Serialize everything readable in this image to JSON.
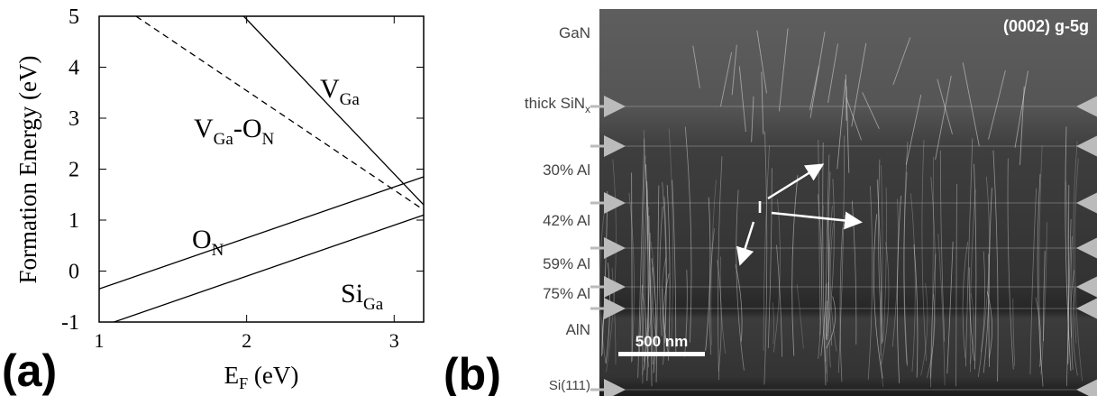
{
  "chart_data": {
    "type": "line",
    "x_label": {
      "main": "E",
      "sub": "F",
      "rest": " (eV)"
    },
    "y_label": "Formation Energy (eV)",
    "xlim": [
      1,
      3.2
    ],
    "ylim": [
      -1,
      5
    ],
    "xticks": [
      1,
      2,
      3
    ],
    "yticks": [
      -1,
      0,
      1,
      2,
      3,
      4,
      5
    ],
    "series": [
      {
        "color": "#000000",
        "dash": false,
        "x": [
          1.98,
          3.2
        ],
        "values": [
          5,
          1.3
        ]
      },
      {
        "color": "#000000",
        "dash": true,
        "x": [
          1.25,
          3.2
        ],
        "values": [
          5,
          1.2
        ]
      },
      {
        "color": "#000000",
        "dash": false,
        "x": [
          1,
          3.2
        ],
        "values": [
          -0.35,
          1.85
        ]
      },
      {
        "color": "#000000",
        "dash": false,
        "x": [
          1.1,
          3.2
        ],
        "values": [
          -1,
          1.1
        ]
      }
    ],
    "annotations": [
      [
        {
          "text": "V",
          "sub": "Ga"
        }
      ],
      [
        {
          "text": "V",
          "sub": "Ga"
        },
        {
          "text": "-O",
          "sub": "N"
        }
      ],
      [
        {
          "text": "O",
          "sub": "N"
        }
      ],
      [
        {
          "text": "Si",
          "sub": "Ga"
        }
      ]
    ]
  },
  "panel_labels": [
    "(a)",
    "(b)"
  ],
  "image": {
    "corner_label": "(0002) g-5g",
    "scale_bar": "500 nm",
    "marker": "I",
    "layers": [
      {
        "text": "GaN"
      },
      {
        "text": "thick SiN",
        "sub": "x"
      },
      {
        "text": "30% Al"
      },
      {
        "text": "42% Al"
      },
      {
        "text": "59% Al"
      },
      {
        "text": "75% Al"
      },
      {
        "text": "AlN"
      },
      {
        "text": "Si(111)"
      }
    ]
  }
}
